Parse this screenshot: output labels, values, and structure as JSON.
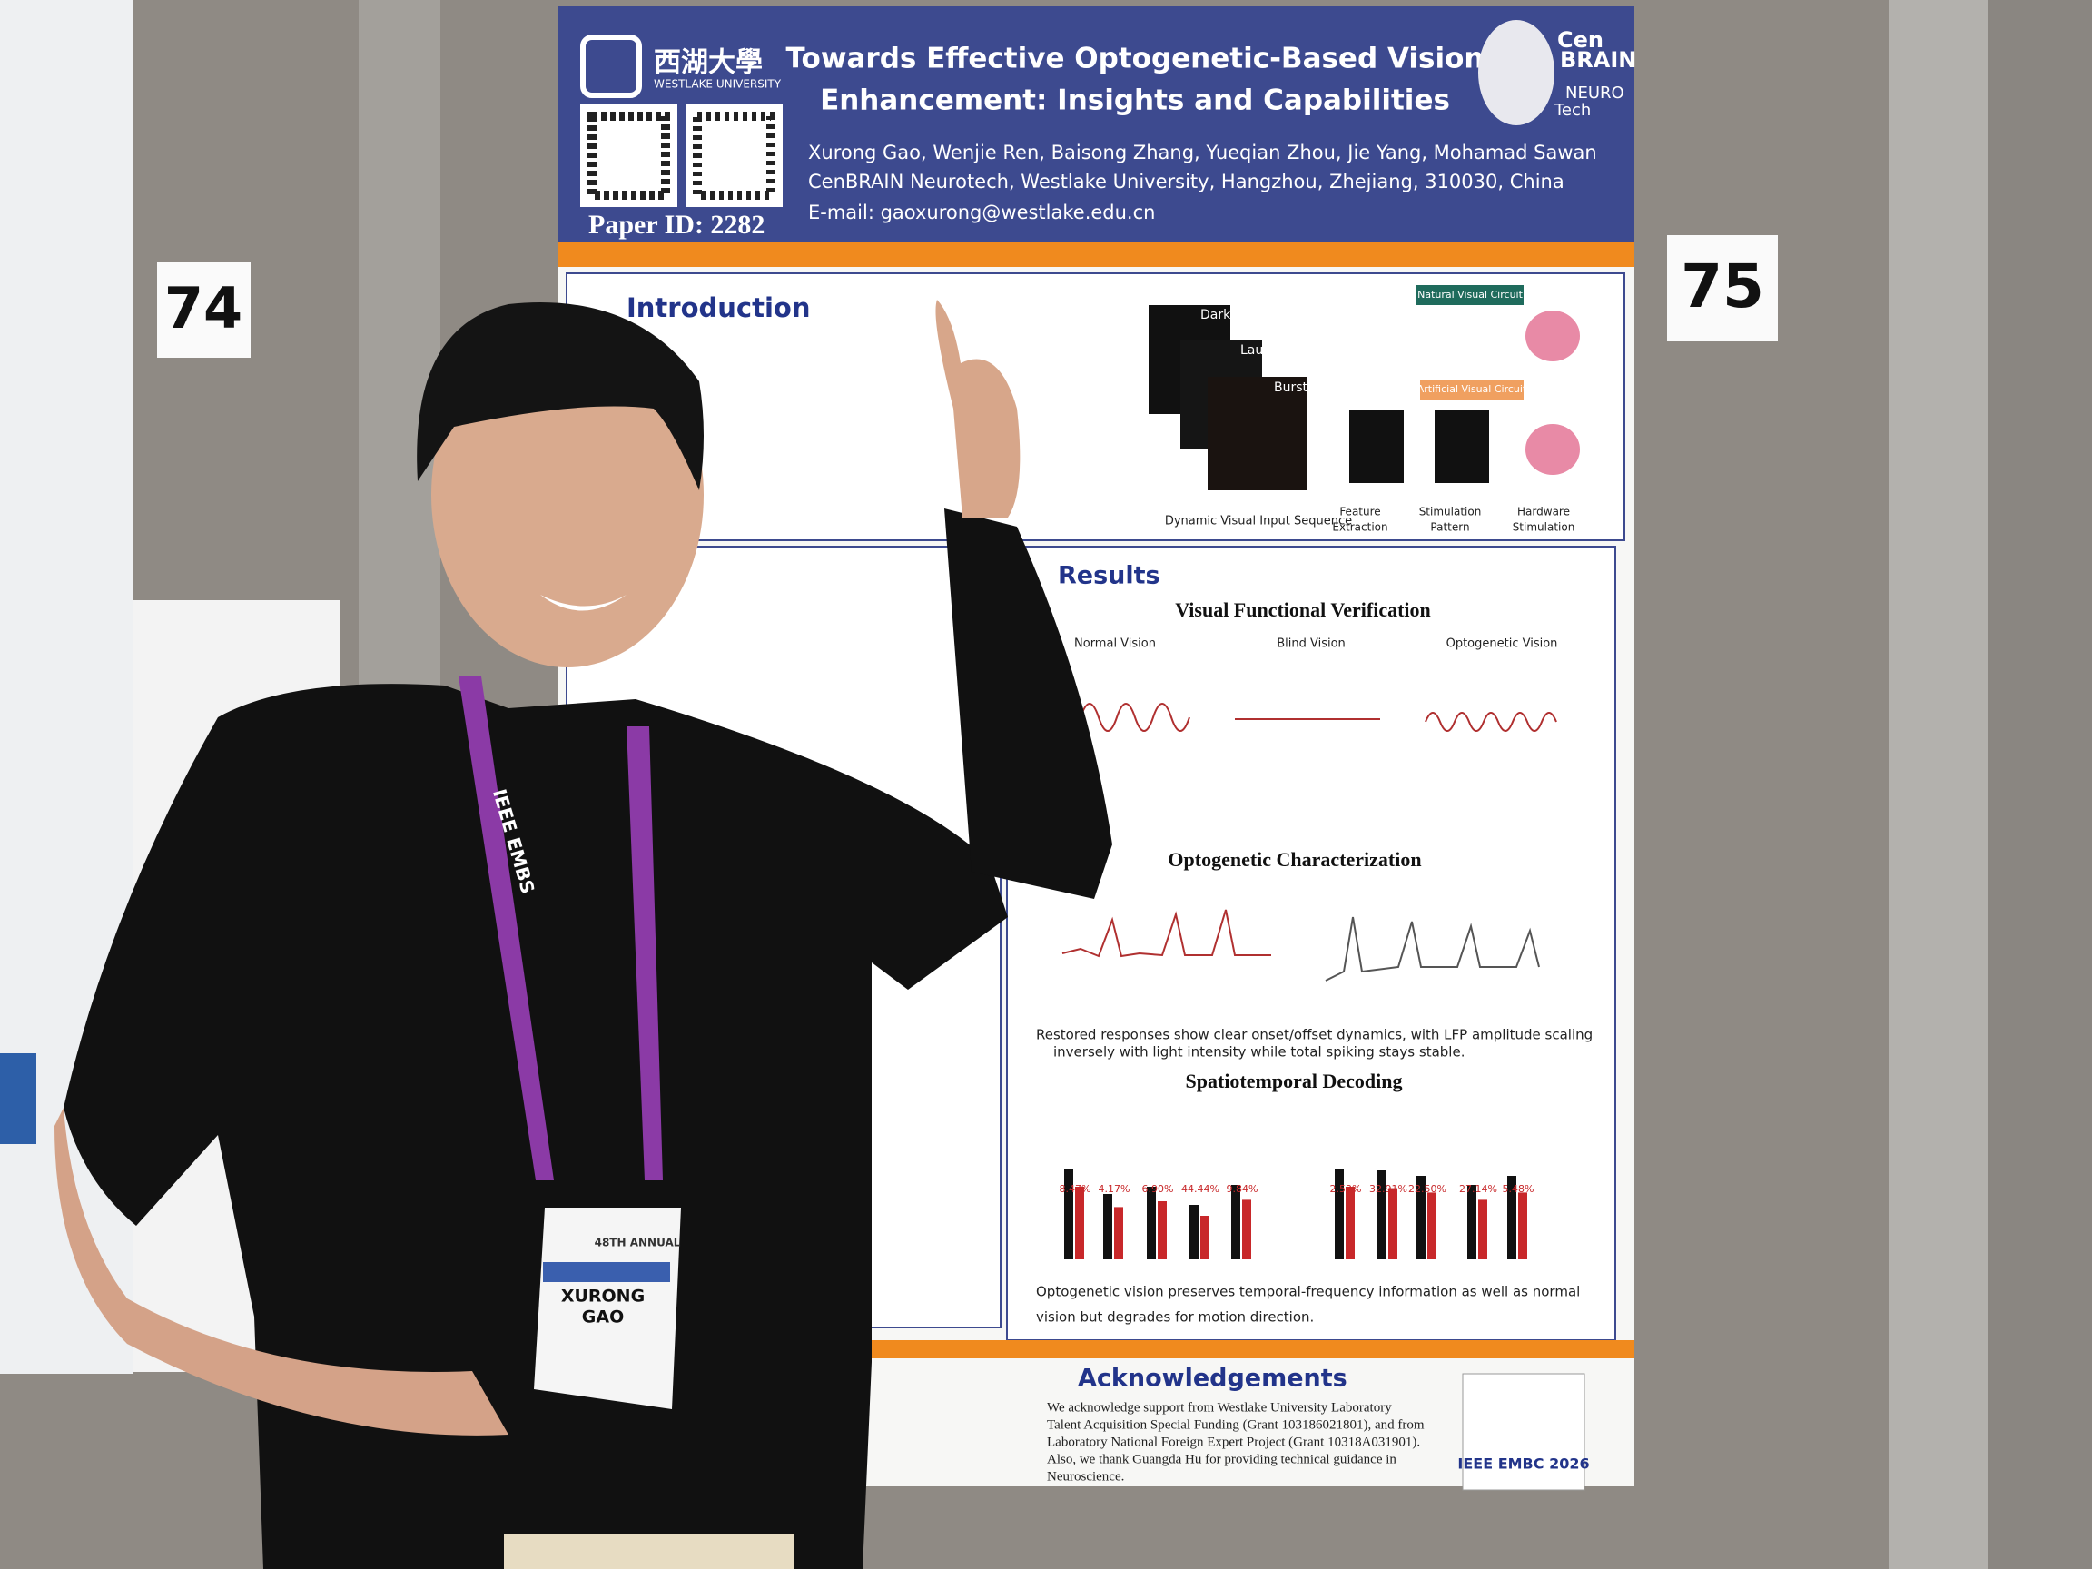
{
  "poster": {
    "university": "西湖大學",
    "university_en": "WESTLAKE UNIVERSITY",
    "title_line1": "Towards Effective Optogenetic-Based Vision",
    "title_line2": "Enhancement: Insights and Capabilities",
    "authors": "Xurong Gao, Wenjie Ren, Baisong Zhang, Yueqian Zhou, Jie Yang, Mohamad Sawan",
    "affiliation": "CenBRAIN Neurotech, Westlake University, Hangzhou, Zhejiang, 310030, China",
    "email": "E-mail: gaoxurong@westlake.edu.cn",
    "paper_id": "Paper ID: 2282",
    "logo": {
      "cen": "Cen",
      "brain": "BRAIN",
      "neuro": "NEURO",
      "tech": "Tech"
    },
    "introduction": {
      "heading": "Introduction",
      "diagram": {
        "frame1": "Dark Sky",
        "frame2": "Launch",
        "frame3": "Burst",
        "natural": "Natural Visual Circuit",
        "artificial": "Artificial Visual Circuit",
        "sequence": "Dynamic Visual Input Sequence",
        "step1": [
          "Feature",
          "Extraction"
        ],
        "step2": [
          "Stimulation",
          "Pattern"
        ],
        "step3": [
          "Hardware",
          "Stimulation"
        ]
      }
    },
    "results": {
      "heading": "Results",
      "sub1": "Visual Functional Verification",
      "panels": [
        "Normal Vision",
        "Blind Vision",
        "Optogenetic Vision"
      ],
      "sub2": "Optogenetic Characterization",
      "caption2": [
        "Restored responses show clear onset/offset dynamics, with LFP amplitude scaling",
        "inversely with light intensity while total spiking stays stable."
      ],
      "sub3": "Spatiotemporal Decoding",
      "labels_a": [
        "8.47%",
        "4.17%",
        "6.90%",
        "44.44%",
        "9.84%"
      ],
      "labels_b": [
        "2.53%",
        "32.91%",
        "22.50%",
        "27.14%",
        "5.48%"
      ],
      "caption3": [
        "Optogenetic vision preserves temporal-frequency information as well as normal",
        "vision but degrades for motion direction."
      ]
    },
    "acknowledgements": {
      "heading": "Acknowledgements",
      "lines": [
        "We acknowledge support from Westlake University Laboratory",
        "Talent Acquisition Special Funding (Grant 103186021801), and from",
        "Laboratory National Foreign Expert Project (Grant 10318A031901).",
        "Also, we thank Guangda Hu for providing technical guidance in",
        "Neuroscience."
      ]
    },
    "conference": "IEEE EMBC 2026"
  },
  "signs": {
    "left": "74",
    "right": "75"
  },
  "badge": {
    "event": "48TH ANNUAL",
    "name_line1": "XURONG",
    "name_line2": "GAO"
  },
  "lanyard": "IEEE EMBS"
}
